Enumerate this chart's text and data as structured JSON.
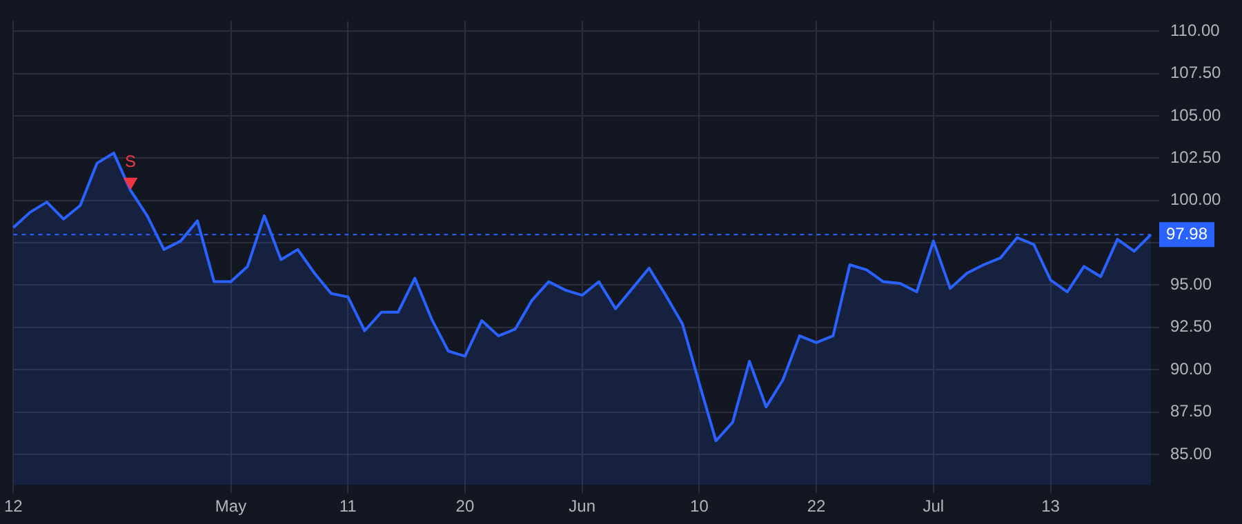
{
  "chart_data": {
    "type": "area",
    "categories": [
      "12",
      null,
      null,
      null,
      null,
      null,
      null,
      null,
      null,
      null,
      null,
      null,
      null,
      "May",
      null,
      null,
      null,
      null,
      null,
      null,
      "11",
      null,
      null,
      null,
      null,
      null,
      null,
      "20",
      null,
      null,
      null,
      null,
      null,
      null,
      "Jun",
      null,
      null,
      null,
      null,
      null,
      null,
      "10",
      null,
      null,
      null,
      null,
      null,
      null,
      "22",
      null,
      null,
      null,
      null,
      null,
      null,
      "Jul",
      null,
      null,
      null,
      null,
      null,
      null,
      "13",
      null,
      null,
      null,
      null,
      null,
      null
    ],
    "series": [
      {
        "type": "area",
        "color": "#2962ff",
        "values": [
          98.4,
          99.3,
          99.9,
          98.9,
          99.7,
          102.2,
          102.8,
          100.6,
          99.1,
          97.1,
          97.6,
          98.8,
          95.2,
          95.2,
          96.1,
          99.1,
          96.5,
          97.1,
          95.7,
          94.5,
          94.3,
          92.3,
          93.4,
          93.4,
          95.4,
          93.0,
          91.1,
          90.8,
          92.9,
          92.0,
          92.4,
          94.1,
          95.2,
          94.7,
          94.4,
          95.2,
          93.6,
          94.8,
          96.0,
          94.4,
          92.7,
          89.2,
          85.8,
          86.9,
          90.5,
          87.8,
          89.4,
          92.0,
          91.6,
          92.0,
          96.2,
          95.9,
          95.2,
          95.1,
          94.6,
          97.6,
          94.8,
          95.7,
          96.2,
          96.6,
          97.8,
          97.4,
          95.3,
          94.6,
          96.1,
          95.5,
          97.7,
          97.0,
          97.98
        ]
      },
      {
        "type": "scatter",
        "color": "#f23645",
        "marker": "triangle",
        "values": [
          null,
          null,
          null,
          null,
          null,
          null,
          null,
          101.1,
          null,
          null,
          null,
          null,
          null,
          null,
          null,
          null,
          null,
          null,
          null,
          null,
          null,
          null,
          null,
          null,
          null,
          null,
          null,
          null,
          null,
          null,
          null,
          null,
          null,
          null,
          null,
          null,
          null,
          null,
          null,
          null,
          null,
          null,
          null,
          null,
          null,
          null,
          null,
          null,
          null,
          null,
          null,
          null,
          null,
          null,
          null,
          null,
          null,
          null,
          null,
          null,
          null,
          null,
          null,
          null,
          null,
          null,
          null,
          null,
          null
        ]
      }
    ],
    "ylim": [
      83.2,
      110.6
    ],
    "yticks": [
      {
        "value": 85,
        "label": "85.00"
      },
      {
        "value": 87.5,
        "label": "87.50"
      },
      {
        "value": 90,
        "label": "90.00"
      },
      {
        "value": 92.5,
        "label": "92.50"
      },
      {
        "value": 95,
        "label": "95.00"
      },
      {
        "value": 97.5,
        "label": null
      },
      {
        "value": 100,
        "label": "100.00"
      },
      {
        "value": 102.5,
        "label": "102.50"
      },
      {
        "value": 105,
        "label": "105.00"
      },
      {
        "value": 107.5,
        "label": "107.50"
      },
      {
        "value": 110,
        "label": "110.00"
      }
    ],
    "ref_lines": [
      {
        "axis": "y",
        "value": 97.98,
        "label": "97.98",
        "color": "#2962ff",
        "line_style": "dashed"
      }
    ],
    "annotations": [
      "S"
    ],
    "grid": true,
    "legend": false
  }
}
